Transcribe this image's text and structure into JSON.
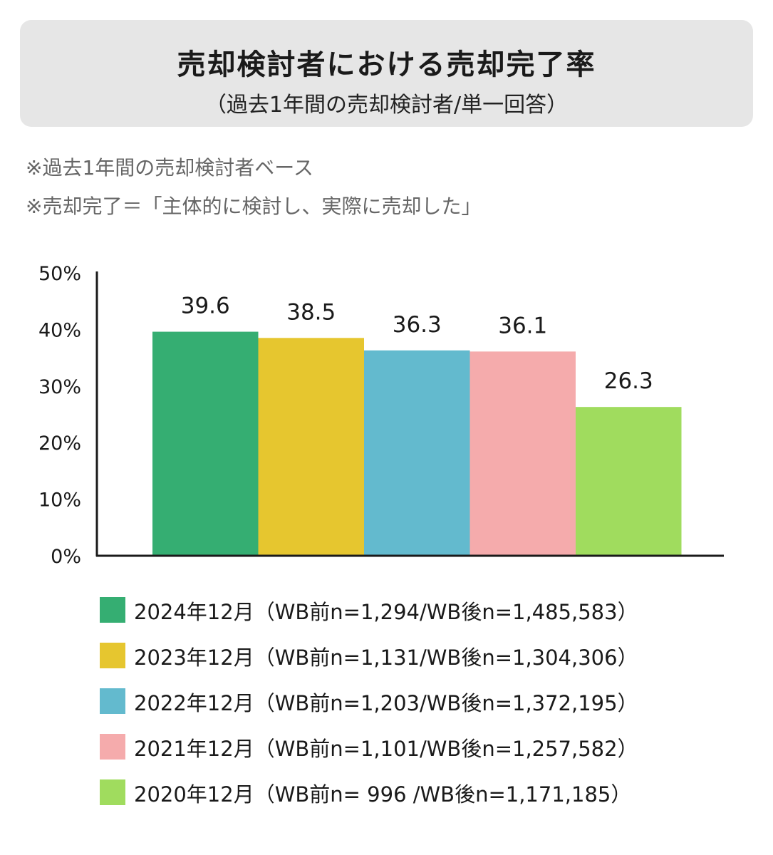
{
  "header": {
    "title": "売却検討者における売却完了率",
    "subtitle": "（過去1年間の売却検討者/単一回答）"
  },
  "notes": [
    "※過去1年間の売却検討者ベース",
    "※売却完了＝「主体的に検討し、実際に売却した」"
  ],
  "chart_data": {
    "type": "bar",
    "title": "",
    "xlabel": "",
    "ylabel": "",
    "ylim": [
      0,
      50
    ],
    "ytick_values": [
      0,
      10,
      20,
      30,
      40,
      50
    ],
    "ytick_labels": [
      "0%",
      "10%",
      "20%",
      "30%",
      "40%",
      "50%"
    ],
    "grid": false,
    "legend_position": "bottom",
    "series": [
      {
        "name": "2024年12月（WB前n=1,294/WB後n=1,485,583）",
        "value": 39.6,
        "label": "39.6",
        "color": "#35ae72"
      },
      {
        "name": "2023年12月（WB前n=1,131/WB後n=1,304,306）",
        "value": 38.5,
        "label": "38.5",
        "color": "#e6c62f"
      },
      {
        "name": "2022年12月（WB前n=1,203/WB後n=1,372,195）",
        "value": 36.3,
        "label": "36.3",
        "color": "#63bace"
      },
      {
        "name": "2021年12月（WB前n=1,101/WB後n=1,257,582）",
        "value": 36.1,
        "label": "36.1",
        "color": "#f5abac"
      },
      {
        "name": "2020年12月（WB前n= 996 /WB後n=1,171,185）",
        "value": 26.3,
        "label": "26.3",
        "color": "#a0dc5e"
      }
    ]
  }
}
